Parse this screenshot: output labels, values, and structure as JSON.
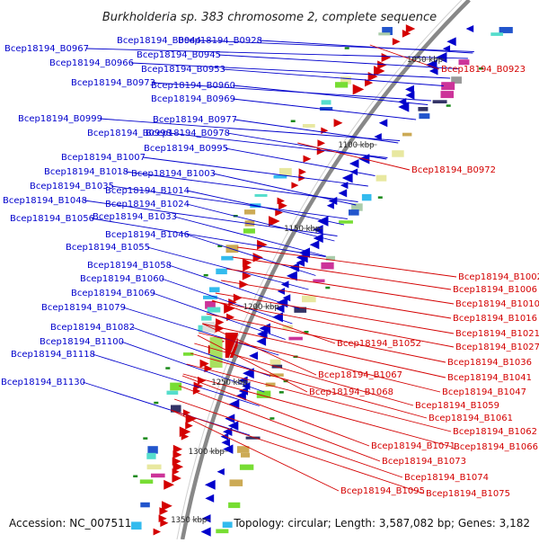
{
  "title": "Burkholderia sp. 383 chromosome 2, complete sequence",
  "footer": {
    "accession": "Accession: NC_007511",
    "summary": "Topology: circular; Length: 3,587,082 bp; Genes: 3,182"
  },
  "colors": {
    "forward": "#d40000",
    "reverse": "#0000cc",
    "backbone": "#888888",
    "tick": "#1a8a1a"
  },
  "kbp_ticks": [
    "1050 kbp",
    "1100 kbp",
    "1150 kbp",
    "1200 kbp",
    "1250 kbp",
    "1300 kbp",
    "1350 kbp"
  ],
  "left_labels": [
    "Bcep18194_B0967",
    "Bcep18194_B0944",
    "Bcep18194_B0928",
    "Bcep18194_B0945",
    "Bcep18194_B0966",
    "Bcep18194_B0953",
    "Bcep18194_B0973",
    "Bcep18194_B0960",
    "Bcep18194_B0969",
    "Bcep18194_B0999",
    "Bcep18194_B0977",
    "Bcep18194_B0998",
    "Bcep18194_B0978",
    "Bcep18194_B0995",
    "Bcep18194_B1007",
    "Bcep18194_B1018",
    "Bcep18194_B1003",
    "Bcep18194_B1035",
    "Bcep18194_B1014",
    "Bcep18194_B1048",
    "Bcep18194_B1024",
    "Bcep18194_B1056",
    "Bcep18194_B1033",
    "Bcep18194_B1046",
    "Bcep18194_B1055",
    "Bcep18194_B1058",
    "Bcep18194_B1060",
    "Bcep18194_B1069",
    "Bcep18194_B1079",
    "Bcep18194_B1082",
    "Bcep18194_B1100",
    "Bcep18194_B1118",
    "Bcep18194_B1130"
  ],
  "right_labels": [
    "Bcep18194_B0923",
    "Bcep18194_B0972",
    "Bcep18194_B1002",
    "Bcep18194_B1006",
    "Bcep18194_B1010",
    "Bcep18194_B1016",
    "Bcep18194_B1021",
    "Bcep18194_B1052",
    "Bcep18194_B1027",
    "Bcep18194_B1036",
    "Bcep18194_B1067",
    "Bcep18194_B1041",
    "Bcep18194_B1068",
    "Bcep18194_B1047",
    "Bcep18194_B1059",
    "Bcep18194_B1061",
    "Bcep18194_B1062",
    "Bcep18194_B1071",
    "Bcep18194_B1066",
    "Bcep18194_B1073",
    "Bcep18194_B1074",
    "Bcep18194_B1095",
    "Bcep18194_B1075"
  ]
}
